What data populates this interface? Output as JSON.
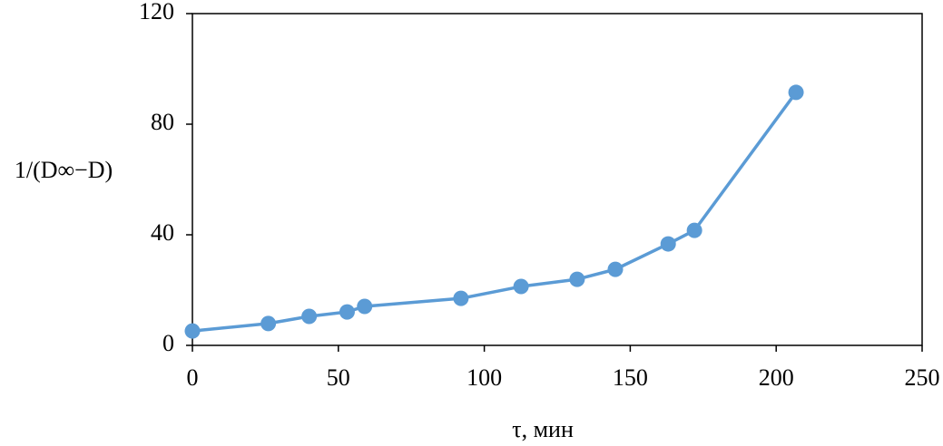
{
  "chart_data": {
    "type": "line",
    "x_label": "τ, мин",
    "y_label": "1/(D∞−D)",
    "x": [
      0,
      26,
      40,
      53,
      59,
      92,
      112.6,
      131.8,
      144.9,
      163,
      172,
      206.8
    ],
    "series": [
      {
        "color": "#5b9bd5",
        "values": [
          5.2,
          7.9,
          10.5,
          12.1,
          14.1,
          17.0,
          21.3,
          23.9,
          27.5,
          36.7,
          41.6,
          91.5
        ]
      }
    ],
    "xlim": [
      0,
      250
    ],
    "xticks": [
      0,
      50,
      100,
      150,
      200,
      250
    ],
    "ylim": [
      0,
      120
    ],
    "yticks": [
      0,
      40,
      80,
      120
    ],
    "markers": true,
    "grid": false
  }
}
